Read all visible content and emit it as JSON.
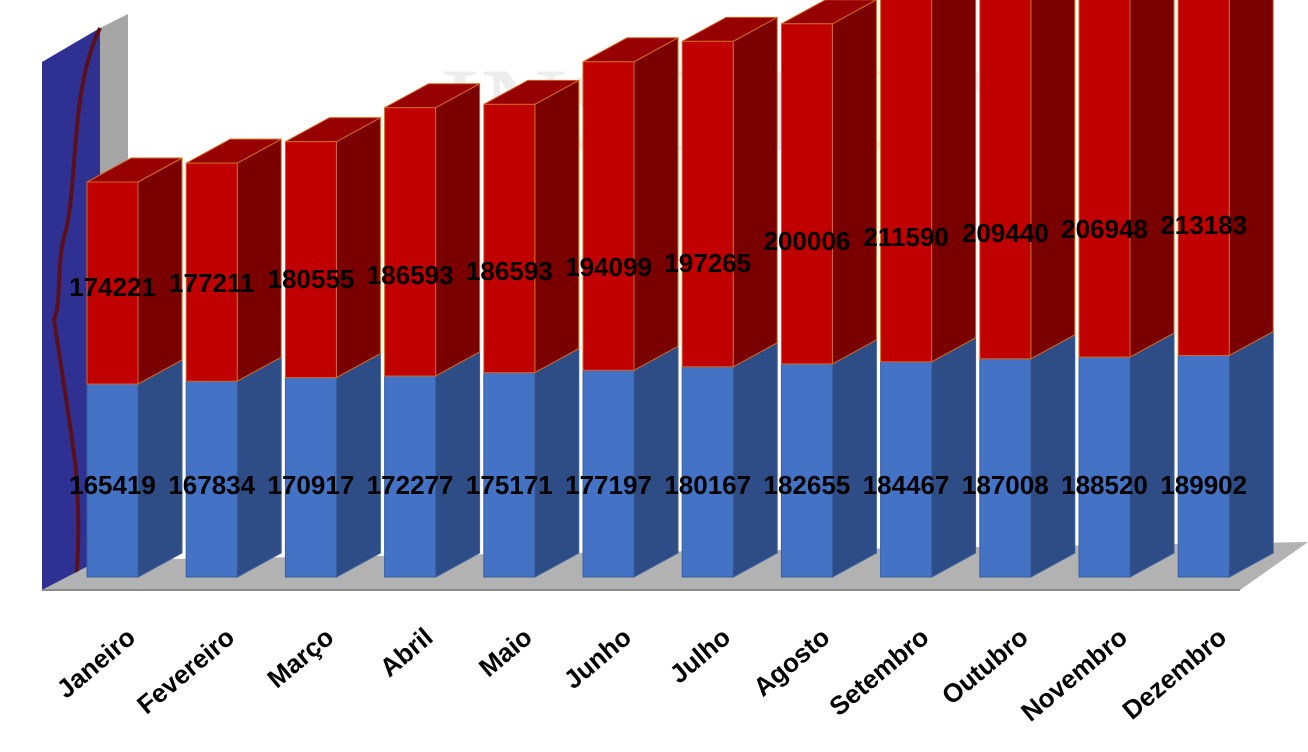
{
  "watermark_text": "INSTITUTO",
  "chart_data": {
    "type": "bar",
    "stacked": true,
    "three_d": true,
    "categories": [
      "Janeiro",
      "Fevereiro",
      "Março",
      "Abril",
      "Maio",
      "Junho",
      "Julho",
      "Agosto",
      "Setembro",
      "Outubro",
      "Novembro",
      "Dezembro"
    ],
    "series": [
      {
        "values": [
          165419,
          167834,
          170917,
          172277,
          175171,
          177197,
          180167,
          182655,
          184467,
          187008,
          188520,
          189902
        ],
        "color": "#4472c4"
      },
      {
        "values": [
          174221,
          177211,
          180555,
          186593,
          186593,
          194099,
          197265,
          200006,
          211590,
          209440,
          206948,
          213183
        ],
        "color": "#c00000"
      }
    ],
    "title": "",
    "xlabel": "",
    "ylabel": "",
    "grid": false,
    "legend": "none"
  },
  "colors": {
    "front_blue": "#4472c4",
    "side_blue": "#2e4d87",
    "top_blue": "#5b86d1",
    "front_red": "#c00000",
    "side_red": "#7a0000",
    "top_red": "#960000",
    "back_wall": "#2e3192",
    "floor": "#b2b2b2"
  }
}
